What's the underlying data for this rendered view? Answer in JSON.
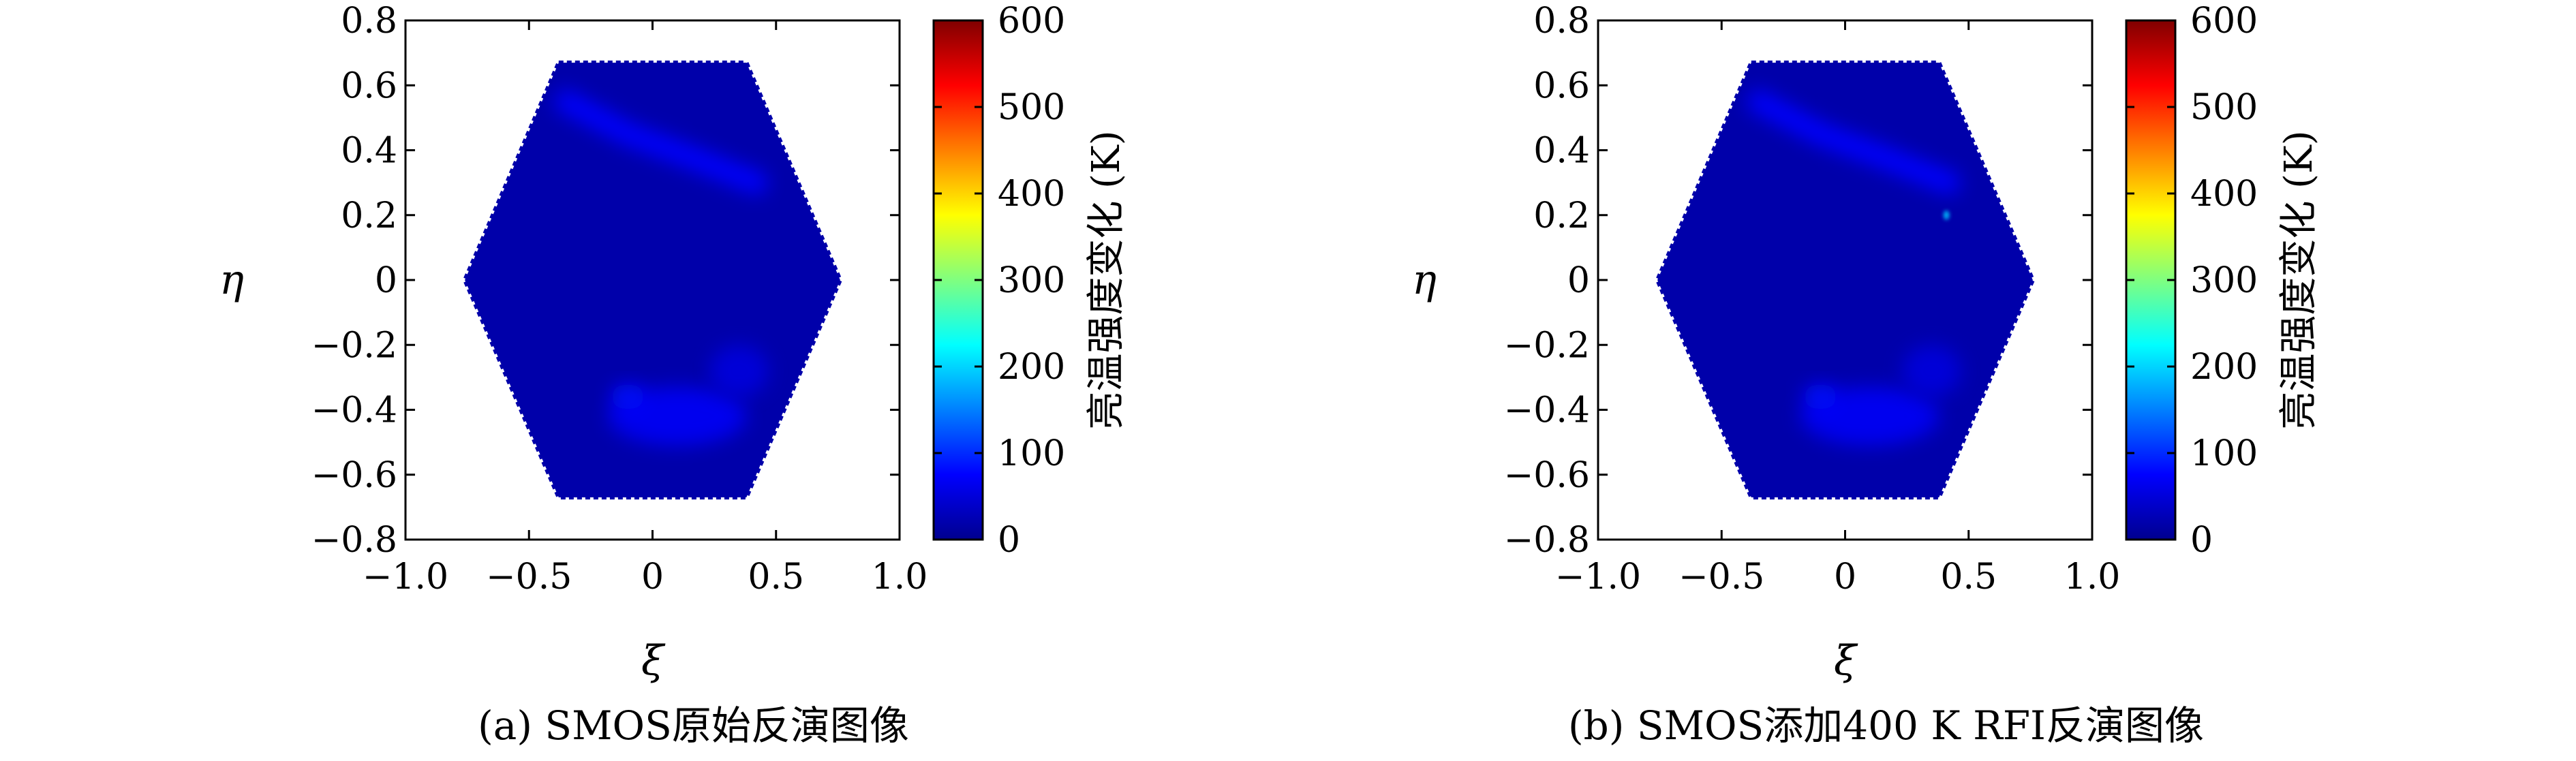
{
  "figure": {
    "panels": [
      {
        "caption": "(a) SMOS原始反演图像",
        "colorbar_label": "亮温强度变化 (K)",
        "chart_data": {
          "type": "heatmap",
          "title": "",
          "xlabel": "ξ",
          "ylabel": "η",
          "xlim": [
            -1.0,
            1.0
          ],
          "ylim": [
            -0.8,
            0.8
          ],
          "x_ticks": [
            "−1.0",
            "−0.5",
            "0",
            "0.5",
            "1.0"
          ],
          "y_ticks": [
            "0.8",
            "0.6",
            "0.4",
            "0.2",
            "0",
            "−0.2",
            "−0.4",
            "−0.6",
            "−0.8"
          ],
          "colorbar_ticks": [
            "600",
            "500",
            "400",
            "300",
            "200",
            "100",
            "0"
          ],
          "colorbar_range": [
            0,
            600
          ],
          "colormap": "jet",
          "domain_shape": "hexagon",
          "domain_vertices": [
            [
              -0.38,
              0.67
            ],
            [
              0.38,
              0.67
            ],
            [
              0.76,
              0.0
            ],
            [
              0.38,
              -0.67
            ],
            [
              -0.38,
              -0.67
            ],
            [
              -0.76,
              0.0
            ]
          ],
          "background_value": 25,
          "features": [
            {
              "shape": "band",
              "points": [
                [
                  -0.35,
                  0.55
                ],
                [
                  -0.1,
                  0.45
                ],
                [
                  0.15,
                  0.38
                ],
                [
                  0.35,
                  0.32
                ],
                [
                  0.42,
                  0.3
                ]
              ],
              "value": 75
            },
            {
              "shape": "blob",
              "center": [
                0.1,
                -0.42
              ],
              "radius": [
                0.28,
                0.09
              ],
              "value": 70
            },
            {
              "shape": "blob",
              "center": [
                0.35,
                -0.28
              ],
              "radius": [
                0.12,
                0.08
              ],
              "value": 55
            },
            {
              "shape": "blob",
              "center": [
                -0.1,
                -0.36
              ],
              "radius": [
                0.07,
                0.04
              ],
              "value": 80
            }
          ]
        }
      },
      {
        "caption": "(b) SMOS添加400 K RFI反演图像",
        "colorbar_label": "亮温强度变化 (K)",
        "chart_data": {
          "type": "heatmap",
          "title": "",
          "xlabel": "ξ",
          "ylabel": "η",
          "xlim": [
            -1.0,
            1.0
          ],
          "ylim": [
            -0.8,
            0.8
          ],
          "x_ticks": [
            "−1.0",
            "−0.5",
            "0",
            "0.5",
            "1.0"
          ],
          "y_ticks": [
            "0.8",
            "0.6",
            "0.4",
            "0.2",
            "0",
            "−0.2",
            "−0.4",
            "−0.6",
            "−0.8"
          ],
          "colorbar_ticks": [
            "600",
            "500",
            "400",
            "300",
            "200",
            "100",
            "0"
          ],
          "colorbar_range": [
            0,
            600
          ],
          "colormap": "jet",
          "domain_shape": "hexagon",
          "domain_vertices": [
            [
              -0.38,
              0.67
            ],
            [
              0.38,
              0.67
            ],
            [
              0.76,
              0.0
            ],
            [
              0.38,
              -0.67
            ],
            [
              -0.38,
              -0.67
            ],
            [
              -0.76,
              0.0
            ]
          ],
          "background_value": 25,
          "features": [
            {
              "shape": "band",
              "points": [
                [
                  -0.35,
                  0.55
                ],
                [
                  -0.1,
                  0.45
                ],
                [
                  0.15,
                  0.38
                ],
                [
                  0.35,
                  0.32
                ],
                [
                  0.42,
                  0.3
                ]
              ],
              "value": 75
            },
            {
              "shape": "blob",
              "center": [
                0.1,
                -0.42
              ],
              "radius": [
                0.28,
                0.09
              ],
              "value": 70
            },
            {
              "shape": "blob",
              "center": [
                0.35,
                -0.28
              ],
              "radius": [
                0.12,
                0.08
              ],
              "value": 55
            },
            {
              "shape": "blob",
              "center": [
                -0.1,
                -0.36
              ],
              "radius": [
                0.07,
                0.04
              ],
              "value": 80
            },
            {
              "shape": "spot",
              "center": [
                0.41,
                0.2
              ],
              "radius": [
                0.012,
                0.014
              ],
              "value": 190
            }
          ]
        }
      }
    ]
  }
}
